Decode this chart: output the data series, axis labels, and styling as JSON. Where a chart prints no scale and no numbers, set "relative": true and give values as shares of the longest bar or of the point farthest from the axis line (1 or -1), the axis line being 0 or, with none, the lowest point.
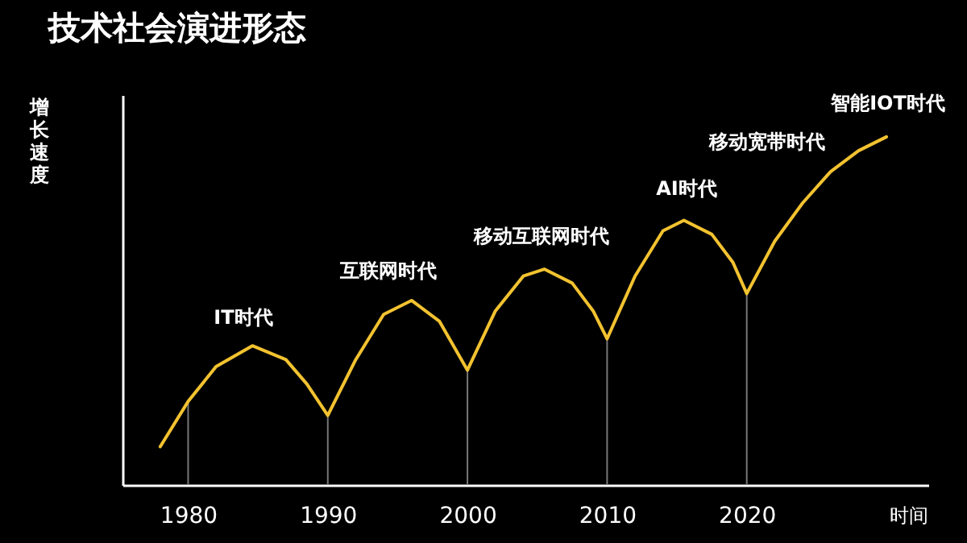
{
  "chart_data": {
    "type": "line",
    "title": "技术社会演进形态",
    "xlabel": "时间",
    "ylabel": "增长速度",
    "relative": true,
    "grid": false,
    "xlim": [
      1975.3,
      2033
    ],
    "xticks": [
      1980,
      1990,
      2000,
      2010,
      2020
    ],
    "x": [
      1978,
      1980,
      1982,
      1984.6,
      1987,
      1988.5,
      1990,
      1992,
      1994,
      1996,
      1998,
      2000,
      2002,
      2004,
      2005.5,
      2007.5,
      2009,
      2010,
      2012,
      2014,
      2015.5,
      2017.5,
      2019,
      2020,
      2022,
      2024,
      2026,
      2028,
      2030
    ],
    "series": [
      {
        "color": "#f2c230",
        "values": [
          0.11,
          0.24,
          0.34,
          0.4,
          0.36,
          0.29,
          0.2,
          0.36,
          0.49,
          0.53,
          0.47,
          0.33,
          0.5,
          0.6,
          0.62,
          0.58,
          0.5,
          0.42,
          0.6,
          0.73,
          0.76,
          0.72,
          0.64,
          0.55,
          0.7,
          0.81,
          0.9,
          0.96,
          1.0
        ]
      }
    ],
    "ref_lines": [
      {
        "axis": "x",
        "value": 1980,
        "color": "#777777"
      },
      {
        "axis": "x",
        "value": 1990,
        "color": "#777777"
      },
      {
        "axis": "x",
        "value": 2000,
        "color": "#777777"
      },
      {
        "axis": "x",
        "value": 2010,
        "color": "#777777"
      },
      {
        "axis": "x",
        "value": 2020,
        "color": "#777777"
      }
    ],
    "annotations": [
      "IT时代",
      "互联网时代",
      "移动互联网时代",
      "AI时代",
      "移动宽带时代",
      "智能IOT时代"
    ]
  }
}
